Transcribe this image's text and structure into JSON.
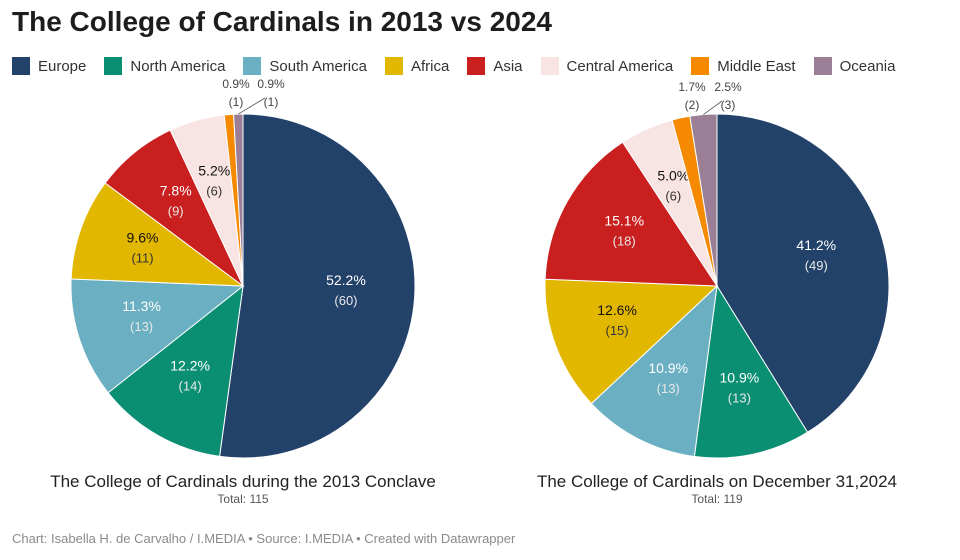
{
  "title": "The College of Cardinals in 2013 vs 2024",
  "legend": [
    {
      "name": "Europe",
      "color": "#23426a"
    },
    {
      "name": "North America",
      "color": "#0a8f73"
    },
    {
      "name": "South America",
      "color": "#6aafc2"
    },
    {
      "name": "Africa",
      "color": "#e2b700"
    },
    {
      "name": "Asia",
      "color": "#c91f1f"
    },
    {
      "name": "Central America",
      "color": "#f8e5e3"
    },
    {
      "name": "Middle East",
      "color": "#f58a00"
    },
    {
      "name": "Oceania",
      "color": "#9a7f97"
    }
  ],
  "chart_data": [
    {
      "type": "pie",
      "title": "The College of Cardinals during the 2013 Conclave",
      "total_label": "Total: 115",
      "categories": [
        "Europe",
        "North America",
        "South America",
        "Africa",
        "Asia",
        "Central America",
        "Middle East",
        "Oceania"
      ],
      "values": [
        60,
        14,
        13,
        11,
        9,
        6,
        1,
        1
      ],
      "labels": [
        "52.2%",
        "12.2%",
        "11.3%",
        "9.6%",
        "7.8%",
        "5.2%",
        "0.9%",
        "0.9%"
      ]
    },
    {
      "type": "pie",
      "title": "The College of Cardinals on December 31,2024",
      "total_label": "Total: 119",
      "categories": [
        "Europe",
        "North America",
        "South America",
        "Africa",
        "Asia",
        "Central America",
        "Middle East",
        "Oceania"
      ],
      "values": [
        49,
        13,
        13,
        15,
        18,
        6,
        2,
        3
      ],
      "labels": [
        "41.2%",
        "10.9%",
        "10.9%",
        "12.6%",
        "15.1%",
        "5.0%",
        "1.7%",
        "2.5%"
      ]
    }
  ],
  "footer": "Chart: Isabella H. de Carvalho / I.MEDIA • Source: I.MEDIA • Created with Datawrapper"
}
